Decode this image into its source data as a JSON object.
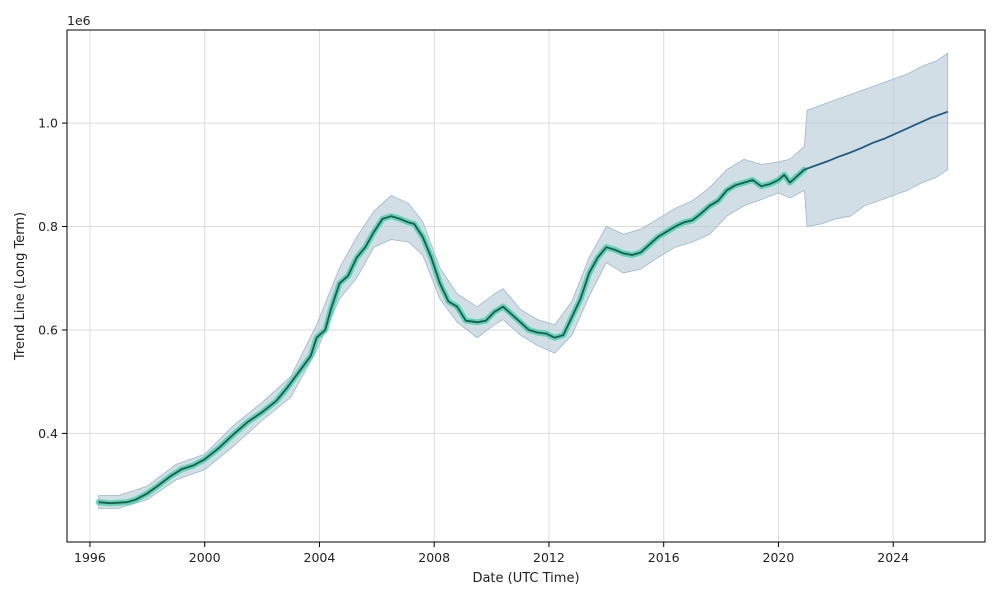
{
  "chart_data": {
    "type": "line",
    "xlabel": "Date (UTC Time)",
    "ylabel": "Trend Line (Long Term)",
    "y_offset_label": "1e6",
    "xlim": [
      1995.2,
      2027.2
    ],
    "ylim": [
      0.19,
      1.18
    ],
    "x_ticks": [
      1996,
      2000,
      2004,
      2008,
      2012,
      2016,
      2020,
      2024
    ],
    "x_tick_labels": [
      "1996",
      "2000",
      "2004",
      "2008",
      "2012",
      "2016",
      "2020",
      "2024"
    ],
    "y_ticks": [
      0.4,
      0.6,
      0.8,
      1.0
    ],
    "y_tick_labels": [
      "0.4",
      "0.6",
      "0.8",
      "1.0"
    ],
    "grid": true,
    "legend": "none",
    "colors": {
      "history_line": "#1a5c4e",
      "history_glow": "#3ecfa8",
      "forecast_line": "#1f5a80",
      "band": "#b3c8d6"
    },
    "series": [
      {
        "role": "history",
        "x": [
          1996.3,
          1996.7,
          1997.0,
          1997.3,
          1997.6,
          1998.0,
          1998.4,
          1998.8,
          1999.2,
          1999.6,
          2000.0,
          2000.5,
          2001.0,
          2001.5,
          2002.0,
          2002.5,
          2002.9,
          2003.3,
          2003.7,
          2003.9,
          2004.2,
          2004.4,
          2004.7,
          2005.0,
          2005.3,
          2005.6,
          2005.9,
          2006.2,
          2006.5,
          2006.8,
          2007.1,
          2007.3,
          2007.6,
          2007.9,
          2008.2,
          2008.5,
          2008.8,
          2009.1,
          2009.5,
          2009.8,
          2010.1,
          2010.4,
          2010.7,
          2011.0,
          2011.3,
          2011.6,
          2011.9,
          2012.2,
          2012.5,
          2012.8,
          2013.1,
          2013.4,
          2013.7,
          2014.0,
          2014.3,
          2014.6,
          2014.9,
          2015.2,
          2015.5,
          2015.8,
          2016.1,
          2016.4,
          2016.7,
          2017.0,
          2017.3,
          2017.6,
          2017.9,
          2018.2,
          2018.5,
          2018.8,
          2019.1,
          2019.4,
          2019.7,
          2020.0,
          2020.2,
          2020.4,
          2020.6,
          2020.9
        ],
        "y": [
          0.267,
          0.265,
          0.266,
          0.267,
          0.272,
          0.284,
          0.3,
          0.317,
          0.331,
          0.338,
          0.35,
          0.372,
          0.398,
          0.422,
          0.441,
          0.463,
          0.49,
          0.52,
          0.55,
          0.585,
          0.6,
          0.64,
          0.69,
          0.705,
          0.74,
          0.76,
          0.79,
          0.815,
          0.82,
          0.815,
          0.808,
          0.805,
          0.78,
          0.74,
          0.69,
          0.655,
          0.645,
          0.618,
          0.615,
          0.618,
          0.635,
          0.645,
          0.63,
          0.615,
          0.6,
          0.595,
          0.593,
          0.585,
          0.59,
          0.625,
          0.66,
          0.71,
          0.74,
          0.76,
          0.755,
          0.748,
          0.745,
          0.75,
          0.765,
          0.78,
          0.79,
          0.8,
          0.808,
          0.812,
          0.825,
          0.84,
          0.85,
          0.87,
          0.88,
          0.885,
          0.89,
          0.878,
          0.882,
          0.89,
          0.9,
          0.885,
          0.895,
          0.91
        ]
      },
      {
        "role": "forecast",
        "x": [
          2020.9,
          2021.3,
          2021.7,
          2022.1,
          2022.5,
          2022.9,
          2023.3,
          2023.7,
          2024.1,
          2024.5,
          2024.9,
          2025.3,
          2025.7,
          2025.9
        ],
        "y": [
          0.91,
          0.918,
          0.926,
          0.935,
          0.943,
          0.952,
          0.962,
          0.97,
          0.98,
          0.99,
          1.0,
          1.01,
          1.018,
          1.022
        ]
      }
    ],
    "band": {
      "x": [
        1996.3,
        1997.0,
        1998.0,
        1999.0,
        2000.0,
        2001.0,
        2002.0,
        2003.0,
        2003.9,
        2004.7,
        2005.3,
        2005.9,
        2006.5,
        2007.1,
        2007.6,
        2008.2,
        2008.8,
        2009.5,
        2010.1,
        2010.4,
        2011.0,
        2011.6,
        2012.2,
        2012.8,
        2013.4,
        2014.0,
        2014.6,
        2015.2,
        2015.8,
        2016.4,
        2017.0,
        2017.6,
        2018.2,
        2018.8,
        2019.4,
        2020.0,
        2020.4,
        2020.9,
        2021.0,
        2021.5,
        2022.0,
        2022.5,
        2023.0,
        2023.5,
        2024.0,
        2024.5,
        2025.0,
        2025.5,
        2025.9
      ],
      "lower": [
        0.255,
        0.255,
        0.272,
        0.31,
        0.33,
        0.375,
        0.425,
        0.47,
        0.56,
        0.66,
        0.7,
        0.76,
        0.775,
        0.77,
        0.745,
        0.66,
        0.615,
        0.585,
        0.61,
        0.62,
        0.59,
        0.57,
        0.555,
        0.59,
        0.665,
        0.73,
        0.71,
        0.718,
        0.74,
        0.76,
        0.77,
        0.785,
        0.82,
        0.84,
        0.852,
        0.865,
        0.855,
        0.87,
        0.8,
        0.805,
        0.815,
        0.82,
        0.84,
        0.85,
        0.86,
        0.87,
        0.885,
        0.895,
        0.91
      ],
      "upper": [
        0.28,
        0.28,
        0.298,
        0.34,
        0.36,
        0.415,
        0.46,
        0.51,
        0.61,
        0.72,
        0.78,
        0.83,
        0.86,
        0.845,
        0.81,
        0.72,
        0.67,
        0.645,
        0.67,
        0.68,
        0.64,
        0.62,
        0.61,
        0.655,
        0.74,
        0.8,
        0.785,
        0.795,
        0.815,
        0.835,
        0.85,
        0.875,
        0.91,
        0.93,
        0.92,
        0.925,
        0.93,
        0.955,
        1.025,
        1.035,
        1.045,
        1.055,
        1.065,
        1.075,
        1.085,
        1.095,
        1.11,
        1.12,
        1.135
      ]
    }
  }
}
